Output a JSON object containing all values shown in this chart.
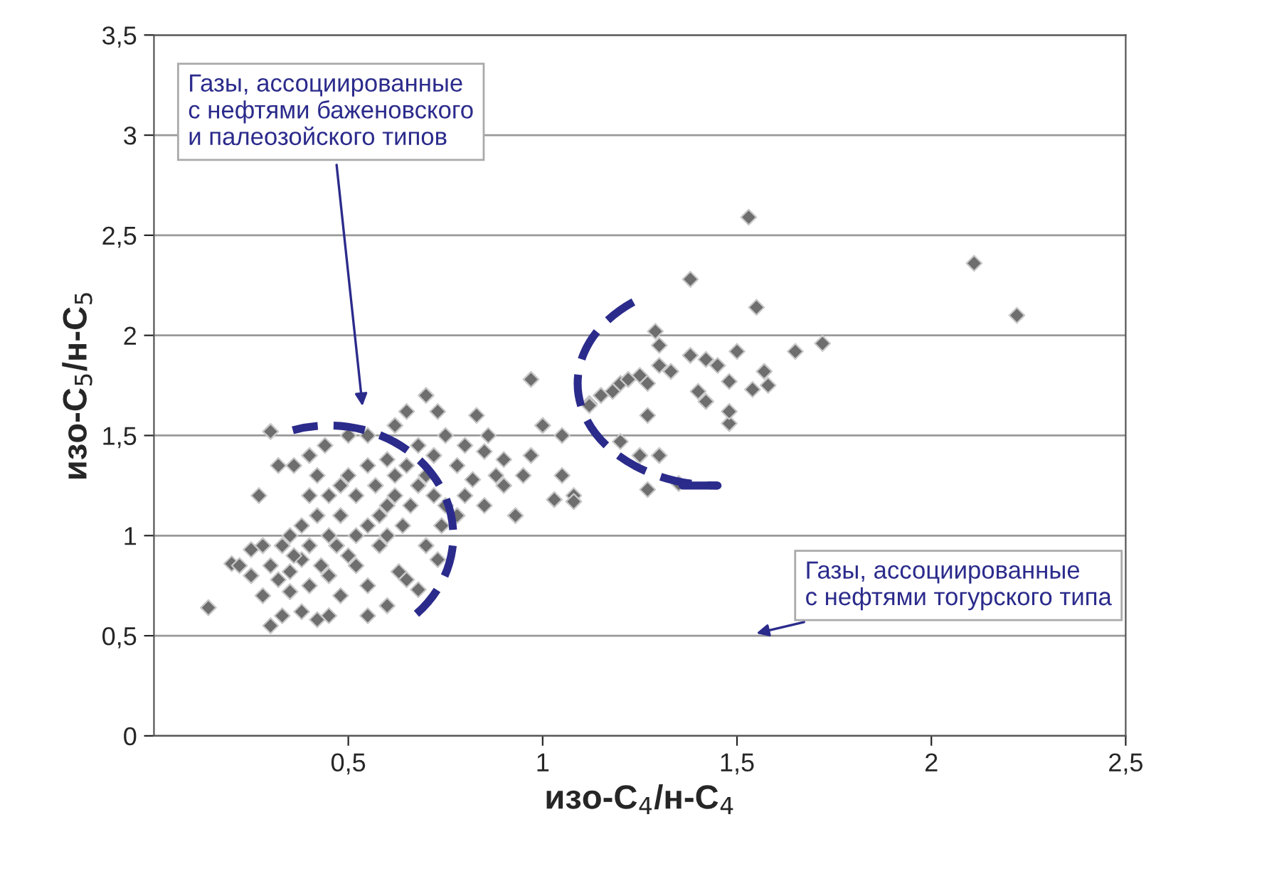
{
  "chart_data": {
    "type": "scatter",
    "xlabel": "изо-C$_{4}$/н-C$_{4}$",
    "ylabel": "изо-C$_{5}$/н-C$_{5}$",
    "xlim": [
      0,
      2.5
    ],
    "ylim": [
      0,
      3.5
    ],
    "xticks": [
      {
        "value": 0.5,
        "label": "0,5"
      },
      1,
      {
        "value": 1.5,
        "label": "1,5"
      },
      2,
      {
        "value": 2.5,
        "label": "2,5"
      }
    ],
    "yticks": [
      0,
      {
        "value": 0.5,
        "label": "0,5"
      },
      1,
      {
        "value": 1.5,
        "label": "1,5"
      },
      2,
      {
        "value": 2.5,
        "label": "2,5"
      },
      3,
      {
        "value": 3.5,
        "label": "3,5"
      }
    ],
    "grid": "y",
    "marker": "diamond",
    "legend": false,
    "annotations": [
      "Газы, ассоциированные\nс нефтями баженовского\nи палеозойского типов",
      "Газы, ассоциированные\nс нефтями тогурского типа"
    ],
    "series": [
      {
        "color": "#6e6e6e",
        "x": [
          0.14,
          0.2,
          0.25,
          0.27,
          0.3,
          0.32,
          0.36,
          0.4,
          0.44,
          0.5,
          0.55,
          0.62,
          0.65,
          0.7,
          0.73,
          0.83,
          0.86,
          0.97,
          0.97,
          1.12,
          1.2,
          1.27,
          1.53,
          1.38,
          1.55,
          2.11,
          2.22,
          1.72,
          1.65,
          1.5,
          1.48,
          1.57,
          1.45,
          1.42,
          1.38,
          1.3,
          1.29,
          1.3,
          1.25,
          1.2,
          1.18,
          1.15,
          1.12,
          1.22,
          1.27,
          1.33,
          1.48,
          1.4,
          1.54,
          1.58,
          1.42,
          1.3,
          1.25,
          1.27,
          1.35,
          1.48,
          1.0,
          1.05,
          1.05,
          1.08,
          1.03,
          1.08,
          0.95,
          0.9,
          0.88,
          0.82,
          0.85,
          0.8,
          0.78,
          0.75,
          0.72,
          0.7,
          0.68,
          0.65,
          0.62,
          0.7,
          0.73,
          0.74,
          0.65,
          0.68,
          0.63,
          0.55,
          0.48,
          0.45,
          0.38,
          0.33,
          0.3,
          0.28,
          0.25,
          0.22,
          0.32,
          0.35,
          0.42,
          0.38,
          0.43,
          0.47,
          0.5,
          0.52,
          0.55,
          0.58,
          0.6,
          0.62,
          0.57,
          0.52,
          0.48,
          0.45,
          0.42,
          0.4,
          0.36,
          0.35,
          0.38,
          0.45,
          0.5,
          0.55,
          0.6,
          0.66,
          0.68,
          0.75,
          0.8,
          0.85,
          0.9,
          0.93,
          0.78,
          0.72,
          0.48,
          0.42,
          0.4,
          0.33,
          0.3,
          0.28,
          0.35,
          0.4,
          0.45,
          0.52,
          0.58,
          0.6,
          0.64,
          0.55,
          0.6
        ],
        "values": [
          0.64,
          0.86,
          0.93,
          1.2,
          1.52,
          1.35,
          1.35,
          1.4,
          1.45,
          1.5,
          1.5,
          1.55,
          1.62,
          1.7,
          1.62,
          1.6,
          1.5,
          1.78,
          1.4,
          1.66,
          1.47,
          1.6,
          2.59,
          2.28,
          2.14,
          2.36,
          2.1,
          1.96,
          1.92,
          1.92,
          1.77,
          1.82,
          1.85,
          1.88,
          1.9,
          1.95,
          2.02,
          1.85,
          1.8,
          1.76,
          1.72,
          1.7,
          1.65,
          1.78,
          1.76,
          1.82,
          1.56,
          1.72,
          1.73,
          1.75,
          1.67,
          1.4,
          1.4,
          1.23,
          1.26,
          1.62,
          1.55,
          1.5,
          1.3,
          1.2,
          1.18,
          1.17,
          1.3,
          1.38,
          1.3,
          1.28,
          1.42,
          1.45,
          1.35,
          1.5,
          1.4,
          1.3,
          1.45,
          1.35,
          1.3,
          0.95,
          0.88,
          1.05,
          0.78,
          0.73,
          0.82,
          0.75,
          0.7,
          0.6,
          0.62,
          0.6,
          0.55,
          0.7,
          0.8,
          0.85,
          0.78,
          0.72,
          0.58,
          0.88,
          0.85,
          0.95,
          0.9,
          1.0,
          1.05,
          1.1,
          1.15,
          1.2,
          1.25,
          1.2,
          1.1,
          1.0,
          1.1,
          0.95,
          0.9,
          1.0,
          1.05,
          1.2,
          1.3,
          1.35,
          1.38,
          1.15,
          1.25,
          1.15,
          1.2,
          1.15,
          1.25,
          1.1,
          1.1,
          1.2,
          1.25,
          1.3,
          1.2,
          0.95,
          0.85,
          0.95,
          0.82,
          0.75,
          0.8,
          0.85,
          0.95,
          1.0,
          1.05,
          0.6,
          0.65
        ]
      }
    ]
  }
}
